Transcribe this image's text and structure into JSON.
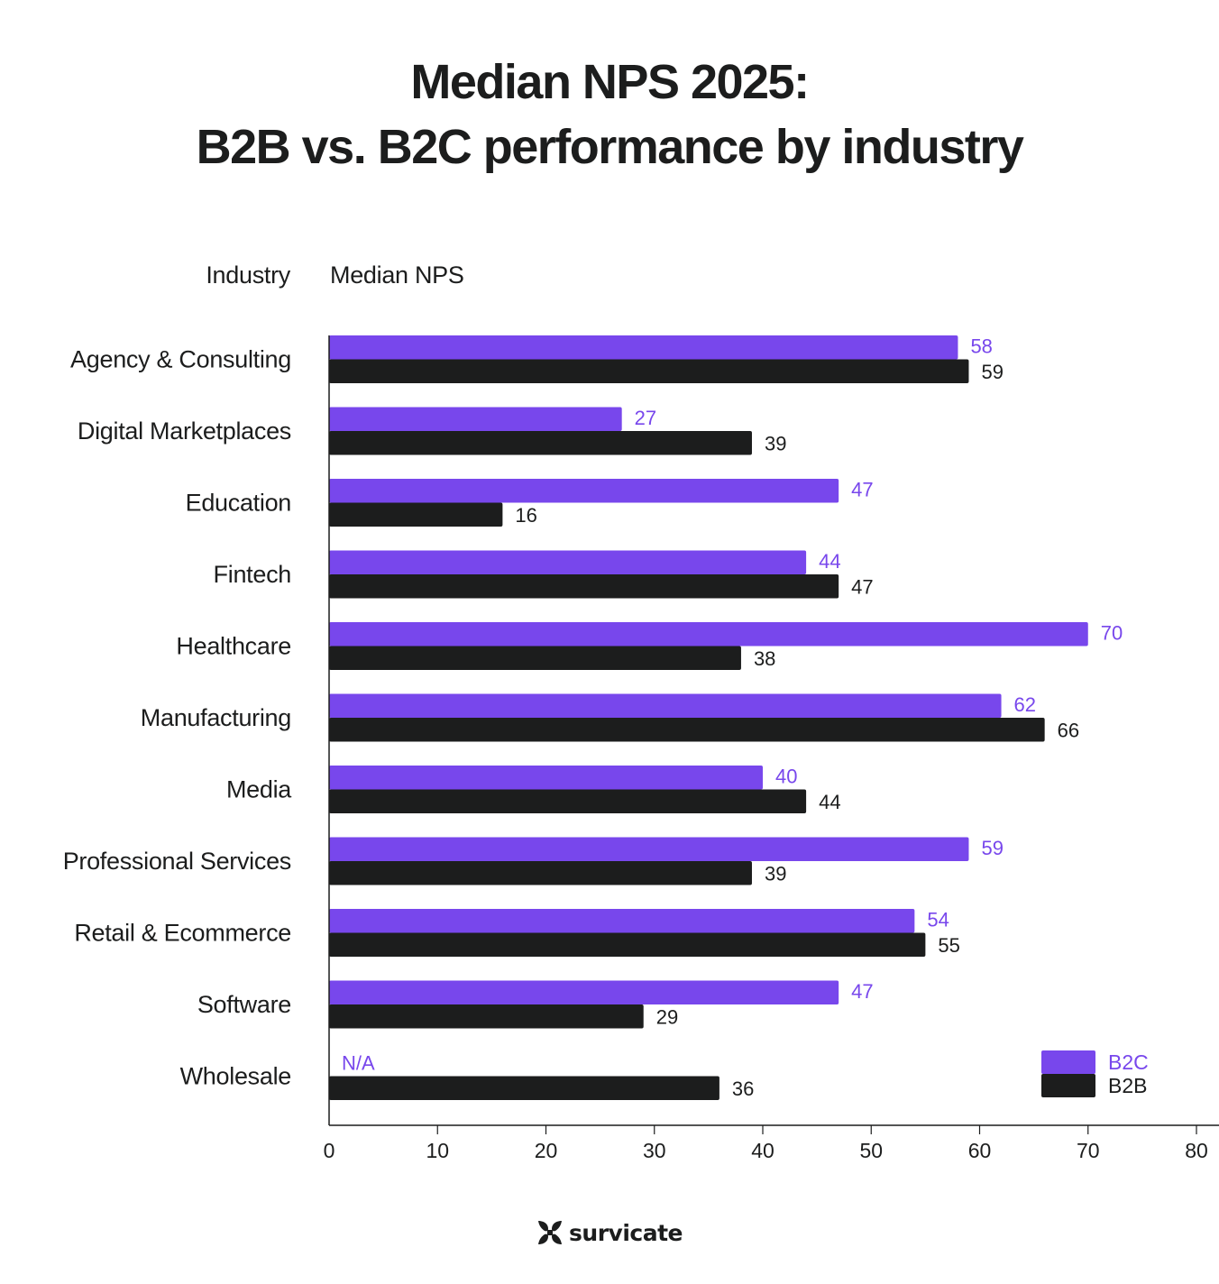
{
  "header": {
    "title_line1": "Median NPS 2025:",
    "title_line2": "B2B vs. B2C performance by industry"
  },
  "columns": {
    "industry_header": "Industry",
    "value_header": "Median NPS"
  },
  "colors": {
    "b2c": "#7847ec",
    "b2b": "#1c1d1d",
    "text": "#1c1d1d",
    "axis": "#1c1d1d"
  },
  "brand": {
    "name": "survicate",
    "logo_icon": "survicate-logo-icon"
  },
  "chart_data": {
    "type": "bar",
    "orientation": "horizontal",
    "title": "Median NPS 2025: B2B vs. B2C performance by industry",
    "xlabel": "Median NPS",
    "ylabel": "Industry",
    "xlim": [
      0,
      80
    ],
    "xticks": [
      0,
      10,
      20,
      30,
      40,
      50,
      60,
      70,
      80
    ],
    "grid": false,
    "legend_position": "bottom-right",
    "categories": [
      "Agency & Consulting",
      "Digital Marketplaces",
      "Education",
      "Fintech",
      "Healthcare",
      "Manufacturing",
      "Media",
      "Professional Services",
      "Retail & Ecommerce",
      "Software",
      "Wholesale"
    ],
    "series": [
      {
        "name": "B2C",
        "color": "#7847ec",
        "values": [
          58,
          27,
          47,
          44,
          70,
          62,
          40,
          59,
          54,
          47,
          null
        ],
        "labels": [
          "58",
          "27",
          "47",
          "44",
          "70",
          "62",
          "40",
          "59",
          "54",
          "47",
          "N/A"
        ]
      },
      {
        "name": "B2B",
        "color": "#1c1d1d",
        "values": [
          59,
          39,
          16,
          47,
          38,
          66,
          44,
          39,
          55,
          29,
          36
        ],
        "labels": [
          "59",
          "39",
          "16",
          "47",
          "38",
          "66",
          "44",
          "39",
          "55",
          "29",
          "36"
        ]
      }
    ]
  }
}
